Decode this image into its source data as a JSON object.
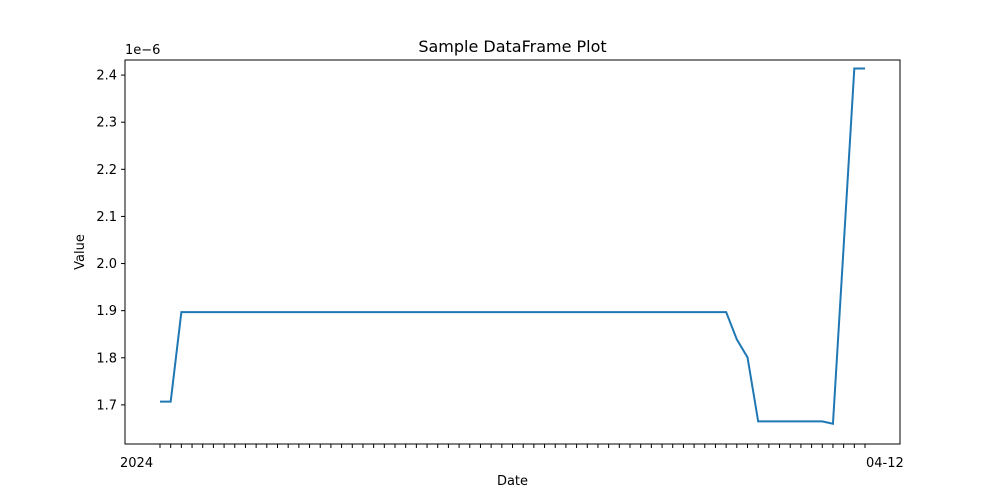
{
  "chart_data": {
    "type": "line",
    "title": "Sample DataFrame Plot",
    "xlabel": "Date",
    "ylabel": "Value",
    "offset_text": "1e−6",
    "grid": false,
    "legend": "none",
    "x_tick_labels_visible": [
      "2024",
      "04-12"
    ],
    "y_ticks": [
      1.7,
      1.8,
      1.9,
      2.0,
      2.1,
      2.2,
      2.3,
      2.4
    ],
    "y_tick_labels": [
      "1.7",
      "1.8",
      "1.9",
      "2.0",
      "2.1",
      "2.2",
      "2.3",
      "2.4"
    ],
    "ylim": [
      1.617,
      2.432
    ],
    "y_scale": 1e-06,
    "series": [
      {
        "color": "#1f77b4",
        "values": [
          1.707,
          1.707,
          1.897,
          1.897,
          1.897,
          1.897,
          1.897,
          1.897,
          1.897,
          1.897,
          1.897,
          1.897,
          1.897,
          1.897,
          1.897,
          1.897,
          1.897,
          1.897,
          1.897,
          1.897,
          1.897,
          1.897,
          1.897,
          1.897,
          1.897,
          1.897,
          1.897,
          1.897,
          1.897,
          1.897,
          1.897,
          1.897,
          1.897,
          1.897,
          1.897,
          1.897,
          1.897,
          1.897,
          1.897,
          1.897,
          1.897,
          1.897,
          1.897,
          1.897,
          1.897,
          1.897,
          1.897,
          1.897,
          1.897,
          1.897,
          1.897,
          1.897,
          1.897,
          1.897,
          1.839,
          1.801,
          1.665,
          1.665,
          1.665,
          1.665,
          1.665,
          1.665,
          1.665,
          1.66,
          2.036,
          2.414,
          2.414
        ]
      }
    ]
  }
}
